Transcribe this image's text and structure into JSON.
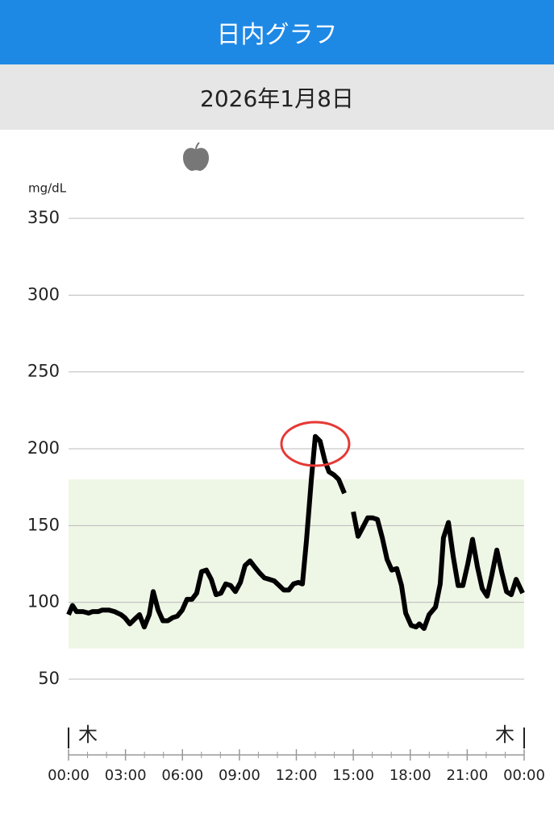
{
  "header": {
    "title": "日内グラフ",
    "date": "2026年1月8日"
  },
  "chart_data": {
    "type": "line",
    "y_unit": "mg/dL",
    "weekday_start": "木",
    "weekday_end": "木",
    "target_range": {
      "low": 70,
      "high": 180,
      "color": "#eef6e6"
    },
    "ylim": [
      50,
      350
    ],
    "yticks": [
      50,
      100,
      150,
      200,
      250,
      300,
      350
    ],
    "grid": true,
    "xlim": [
      0,
      24
    ],
    "xticks": [
      {
        "value": 0,
        "label": "00:00"
      },
      {
        "value": 3,
        "label": "03:00"
      },
      {
        "value": 6,
        "label": "06:00"
      },
      {
        "value": 9,
        "label": "09:00"
      },
      {
        "value": 12,
        "label": "12:00"
      },
      {
        "value": 15,
        "label": "15:00"
      },
      {
        "value": 18,
        "label": "18:00"
      },
      {
        "value": 21,
        "label": "21:00"
      },
      {
        "value": 24,
        "label": "00:00"
      }
    ],
    "xminorticks": [
      1,
      2,
      4,
      5,
      7,
      8,
      10,
      11,
      13,
      14,
      16,
      17,
      19,
      20,
      22,
      23
    ],
    "series": [
      {
        "color": "#000000",
        "x": [
          0,
          0.21,
          0.42,
          0.76,
          1.06,
          1.27,
          1.57,
          1.78,
          2.12,
          2.42,
          2.76,
          2.97,
          3.23,
          3.48,
          3.74,
          3.99,
          4.25,
          4.46,
          4.72,
          4.97,
          5.23,
          5.48,
          5.73,
          5.99,
          6.24,
          6.5,
          6.75,
          7.01,
          7.26,
          7.52,
          7.77,
          8.03,
          8.28,
          8.54,
          8.79,
          9.05,
          9.3,
          9.56,
          9.81,
          10.07,
          10.32,
          10.58,
          10.83,
          11.09,
          11.34,
          11.6,
          11.85,
          12.11,
          12.32,
          12.53,
          12.79,
          13.0,
          13.25,
          13.51,
          13.72,
          13.98,
          14.23,
          14.53,
          14.8,
          15.0,
          15.25,
          15.51,
          15.76,
          16.02,
          16.27,
          16.53,
          16.78,
          17.03,
          17.29,
          17.54,
          17.76,
          18.05,
          18.31,
          18.48,
          18.73,
          18.99,
          19.33,
          19.58,
          19.75,
          20.01,
          20.26,
          20.52,
          20.77,
          21.03,
          21.28,
          21.54,
          21.79,
          22.05,
          22.3,
          22.56,
          22.81,
          23.07,
          23.32,
          23.58,
          23.92
        ],
        "values": [
          92,
          98,
          94,
          94,
          93,
          94,
          94,
          95,
          95,
          94,
          92,
          90,
          86,
          89,
          92,
          84,
          92,
          107,
          95,
          88,
          88,
          90,
          91,
          95,
          102,
          102,
          106,
          120,
          121,
          115,
          105,
          106,
          112,
          111,
          107,
          113,
          124,
          127,
          123,
          119,
          116,
          115,
          114,
          111,
          108,
          108,
          112,
          113,
          112,
          140,
          180,
          208,
          205,
          192,
          185,
          183,
          180,
          171,
          null,
          159,
          143,
          149,
          155,
          155,
          154,
          142,
          128,
          121,
          122,
          111,
          93,
          85,
          84,
          86,
          83,
          92,
          97,
          112,
          142,
          152,
          130,
          111,
          111,
          125,
          141,
          123,
          109,
          104,
          118,
          134,
          120,
          107,
          105,
          115,
          106
        ]
      }
    ]
  }
}
